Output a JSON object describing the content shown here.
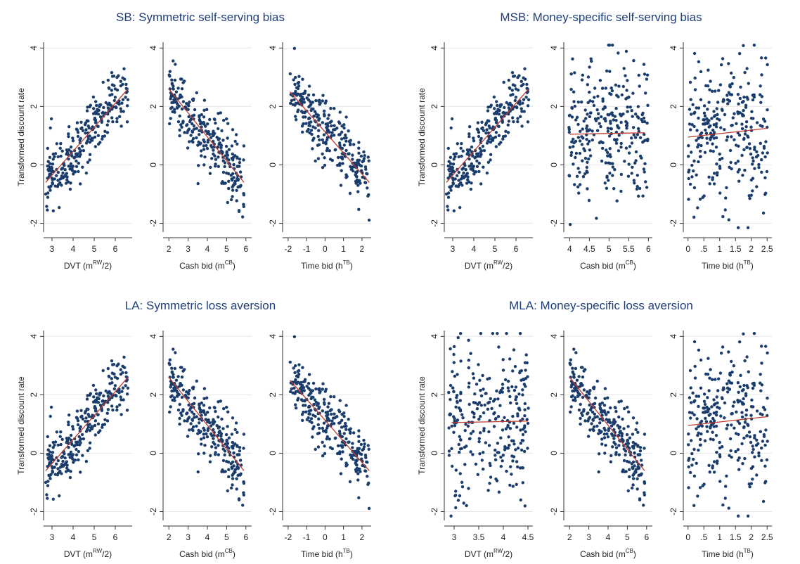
{
  "colors": {
    "marker": "#1a3d6d",
    "fit_line": "#c0392b",
    "grid": "#e8e8e8",
    "axis": "#333333",
    "title": "#1f3f7a"
  },
  "ylabel": "Transformed discount rate",
  "chart_data": [
    {
      "title": "SB: Symmetric self-serving bias",
      "type": "scatter",
      "subplots": [
        {
          "xlabel": {
            "pre": "DVT (m",
            "sup": "RW",
            "post": "/2)"
          },
          "xlim": [
            2.6,
            6.8
          ],
          "ylim": [
            -2.3,
            4.2
          ],
          "xticks": [
            "3",
            "4",
            "5",
            "6"
          ],
          "yticks": [
            "-2",
            "0",
            "2",
            "4"
          ],
          "grid": true,
          "n_points": 280,
          "fit": [
            [
              2.7,
              -0.6
            ],
            [
              6.6,
              2.6
            ]
          ],
          "seed": 11,
          "pattern": "pos"
        },
        {
          "xlabel": {
            "pre": "Cash bid (m",
            "sup": "CB",
            "post": ")"
          },
          "xlim": [
            1.7,
            6.3
          ],
          "ylim": [
            -2.3,
            4.2
          ],
          "xticks": [
            "2",
            "3",
            "4",
            "5",
            "6"
          ],
          "yticks": [
            "-2",
            "0",
            "2",
            "4"
          ],
          "grid": true,
          "n_points": 280,
          "fit": [
            [
              2.0,
              2.6
            ],
            [
              5.9,
              -0.6
            ]
          ],
          "seed": 23,
          "pattern": "neg"
        },
        {
          "xlabel": {
            "pre": "Time bid (h",
            "sup": "TB",
            "post": ")"
          },
          "xlim": [
            -2.3,
            2.5
          ],
          "ylim": [
            -2.3,
            4.2
          ],
          "xticks": [
            "-2",
            "-1",
            "0",
            "1",
            "2"
          ],
          "yticks": [
            "-2",
            "0",
            "2",
            "4"
          ],
          "grid": true,
          "n_points": 280,
          "fit": [
            [
              -1.9,
              2.5
            ],
            [
              2.4,
              -0.6
            ]
          ],
          "seed": 37,
          "pattern": "neg"
        }
      ]
    },
    {
      "title": "MSB: Money-specific self-serving bias",
      "type": "scatter",
      "subplots": [
        {
          "xlabel": {
            "pre": "DVT (m",
            "sup": "RW",
            "post": "/2)"
          },
          "xlim": [
            2.6,
            6.8
          ],
          "ylim": [
            -2.3,
            4.2
          ],
          "xticks": [
            "3",
            "4",
            "5",
            "6"
          ],
          "yticks": [
            "-2",
            "0",
            "2",
            "4"
          ],
          "grid": true,
          "n_points": 280,
          "fit": [
            [
              2.7,
              -0.6
            ],
            [
              6.6,
              2.6
            ]
          ],
          "seed": 11,
          "pattern": "pos"
        },
        {
          "xlabel": {
            "pre": "Cash bid (m",
            "sup": "CB",
            "post": ")"
          },
          "xlim": [
            3.85,
            6.1
          ],
          "ylim": [
            -2.3,
            4.2
          ],
          "xticks": [
            "4",
            "4.5",
            "5",
            "5.5",
            "6"
          ],
          "yticks": [
            "-2",
            "0",
            "2",
            "4"
          ],
          "grid": true,
          "n_points": 280,
          "fit": [
            [
              4.0,
              1.05
            ],
            [
              5.9,
              1.1
            ]
          ],
          "seed": 41,
          "pattern": "flat"
        },
        {
          "xlabel": {
            "pre": "Time bid (h",
            "sup": "TB",
            "post": ")"
          },
          "xlim": [
            -0.15,
            2.65
          ],
          "ylim": [
            -2.3,
            4.2
          ],
          "xticks": [
            "0",
            ".5",
            "1",
            "1.5",
            "2",
            "2.5"
          ],
          "yticks": [
            "-2",
            "0",
            "2",
            "4"
          ],
          "grid": true,
          "n_points": 280,
          "fit": [
            [
              0.0,
              0.95
            ],
            [
              2.5,
              1.25
            ]
          ],
          "seed": 53,
          "pattern": "flat"
        }
      ]
    },
    {
      "title": "LA: Symmetric loss aversion",
      "type": "scatter",
      "subplots": [
        {
          "xlabel": {
            "pre": "DVT (m",
            "sup": "RW",
            "post": "/2)"
          },
          "xlim": [
            2.6,
            6.8
          ],
          "ylim": [
            -2.3,
            4.2
          ],
          "xticks": [
            "3",
            "4",
            "5",
            "6"
          ],
          "yticks": [
            "-2",
            "0",
            "2",
            "4"
          ],
          "grid": true,
          "n_points": 280,
          "fit": [
            [
              2.7,
              -0.6
            ],
            [
              6.6,
              2.6
            ]
          ],
          "seed": 11,
          "pattern": "pos"
        },
        {
          "xlabel": {
            "pre": "Cash bid (m",
            "sup": "CB",
            "post": ")"
          },
          "xlim": [
            1.7,
            6.3
          ],
          "ylim": [
            -2.3,
            4.2
          ],
          "xticks": [
            "2",
            "3",
            "4",
            "5",
            "6"
          ],
          "yticks": [
            "-2",
            "0",
            "2",
            "4"
          ],
          "grid": true,
          "n_points": 280,
          "fit": [
            [
              2.0,
              2.6
            ],
            [
              5.9,
              -0.6
            ]
          ],
          "seed": 23,
          "pattern": "neg"
        },
        {
          "xlabel": {
            "pre": "Time bid (h",
            "sup": "TB",
            "post": ")"
          },
          "xlim": [
            -2.3,
            2.5
          ],
          "ylim": [
            -2.3,
            4.2
          ],
          "xticks": [
            "-2",
            "-1",
            "0",
            "1",
            "2"
          ],
          "yticks": [
            "-2",
            "0",
            "2",
            "4"
          ],
          "grid": true,
          "n_points": 280,
          "fit": [
            [
              -1.9,
              2.5
            ],
            [
              2.4,
              -0.6
            ]
          ],
          "seed": 37,
          "pattern": "neg"
        }
      ]
    },
    {
      "title": "MLA: Money-specific loss aversion",
      "type": "scatter",
      "subplots": [
        {
          "xlabel": {
            "pre": "DVT (m",
            "sup": "RW",
            "post": "/2)"
          },
          "xlim": [
            2.8,
            4.6
          ],
          "ylim": [
            -2.3,
            4.2
          ],
          "xticks": [
            "3",
            "3.5",
            "4",
            "4.5"
          ],
          "yticks": [
            "-2",
            "0",
            "2",
            "4"
          ],
          "grid": true,
          "n_points": 280,
          "fit": [
            [
              2.95,
              1.05
            ],
            [
              4.5,
              1.1
            ]
          ],
          "seed": 67,
          "pattern": "flat"
        },
        {
          "xlabel": {
            "pre": "Cash bid (m",
            "sup": "CB",
            "post": ")"
          },
          "xlim": [
            1.7,
            6.3
          ],
          "ylim": [
            -2.3,
            4.2
          ],
          "xticks": [
            "2",
            "3",
            "4",
            "5",
            "6"
          ],
          "yticks": [
            "-2",
            "0",
            "2",
            "4"
          ],
          "grid": true,
          "n_points": 280,
          "fit": [
            [
              2.0,
              2.6
            ],
            [
              5.9,
              -0.6
            ]
          ],
          "seed": 23,
          "pattern": "neg"
        },
        {
          "xlabel": {
            "pre": "Time bid (h",
            "sup": "TB",
            "post": ")"
          },
          "xlim": [
            -0.15,
            2.65
          ],
          "ylim": [
            -2.3,
            4.2
          ],
          "xticks": [
            "0",
            ".5",
            "1",
            "1.5",
            "2",
            "2.5"
          ],
          "yticks": [
            "-2",
            "0",
            "2",
            "4"
          ],
          "grid": true,
          "n_points": 280,
          "fit": [
            [
              0.0,
              0.95
            ],
            [
              2.5,
              1.25
            ]
          ],
          "seed": 53,
          "pattern": "flat"
        }
      ]
    }
  ]
}
